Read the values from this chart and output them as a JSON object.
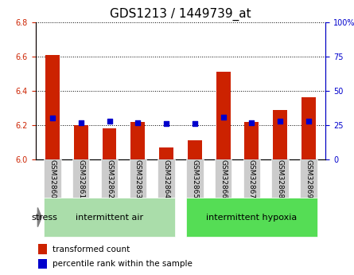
{
  "title": "GDS1213 / 1449739_at",
  "samples": [
    "GSM32860",
    "GSM32861",
    "GSM32862",
    "GSM32863",
    "GSM32864",
    "GSM32865",
    "GSM32866",
    "GSM32867",
    "GSM32868",
    "GSM32869"
  ],
  "transformed_count": [
    6.61,
    6.2,
    6.18,
    6.22,
    6.07,
    6.11,
    6.51,
    6.22,
    6.29,
    6.36
  ],
  "percentile_rank": [
    30,
    27,
    28,
    27,
    26,
    26,
    31,
    27,
    28,
    28
  ],
  "ylim_left": [
    6.0,
    6.8
  ],
  "ylim_right": [
    0,
    100
  ],
  "yticks_left": [
    6.0,
    6.2,
    6.4,
    6.6,
    6.8
  ],
  "yticks_right": [
    0,
    25,
    50,
    75,
    100
  ],
  "group1_label": "intermittent air",
  "group2_label": "intermittent hypoxia",
  "group1_indices": [
    0,
    1,
    2,
    3,
    4
  ],
  "group2_indices": [
    5,
    6,
    7,
    8,
    9
  ],
  "stress_label": "stress",
  "bar_color": "#cc2200",
  "dot_color": "#0000cc",
  "group1_bg": "#aaddaa",
  "group2_bg": "#55dd55",
  "sample_bg": "#cccccc",
  "legend_bar_label": "transformed count",
  "legend_dot_label": "percentile rank within the sample",
  "title_fontsize": 11,
  "tick_fontsize": 7,
  "label_fontsize": 8,
  "bar_width": 0.5
}
